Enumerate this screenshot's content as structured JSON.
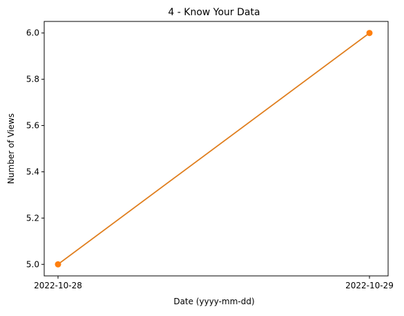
{
  "chart_data": {
    "type": "line",
    "title": "4 - Know Your Data",
    "xlabel": "Date (yyyy-mm-dd)",
    "ylabel": "Number of Views",
    "x": [
      "2022-10-28",
      "2022-10-29"
    ],
    "series": [
      {
        "values": [
          5.0,
          6.0
        ],
        "color": "#ff7f0e",
        "marker": "circle"
      }
    ],
    "line_color": "#e07f1f",
    "ylim": [
      4.95,
      6.05
    ],
    "yticks": [
      5.0,
      5.2,
      5.4,
      5.6,
      5.8,
      6.0
    ],
    "ytick_labels": [
      "5.0",
      "5.2",
      "5.4",
      "5.6",
      "5.8",
      "6.0"
    ],
    "xtick_labels": [
      "2022-10-28",
      "2022-10-29"
    ],
    "grid": false,
    "legend": false
  }
}
